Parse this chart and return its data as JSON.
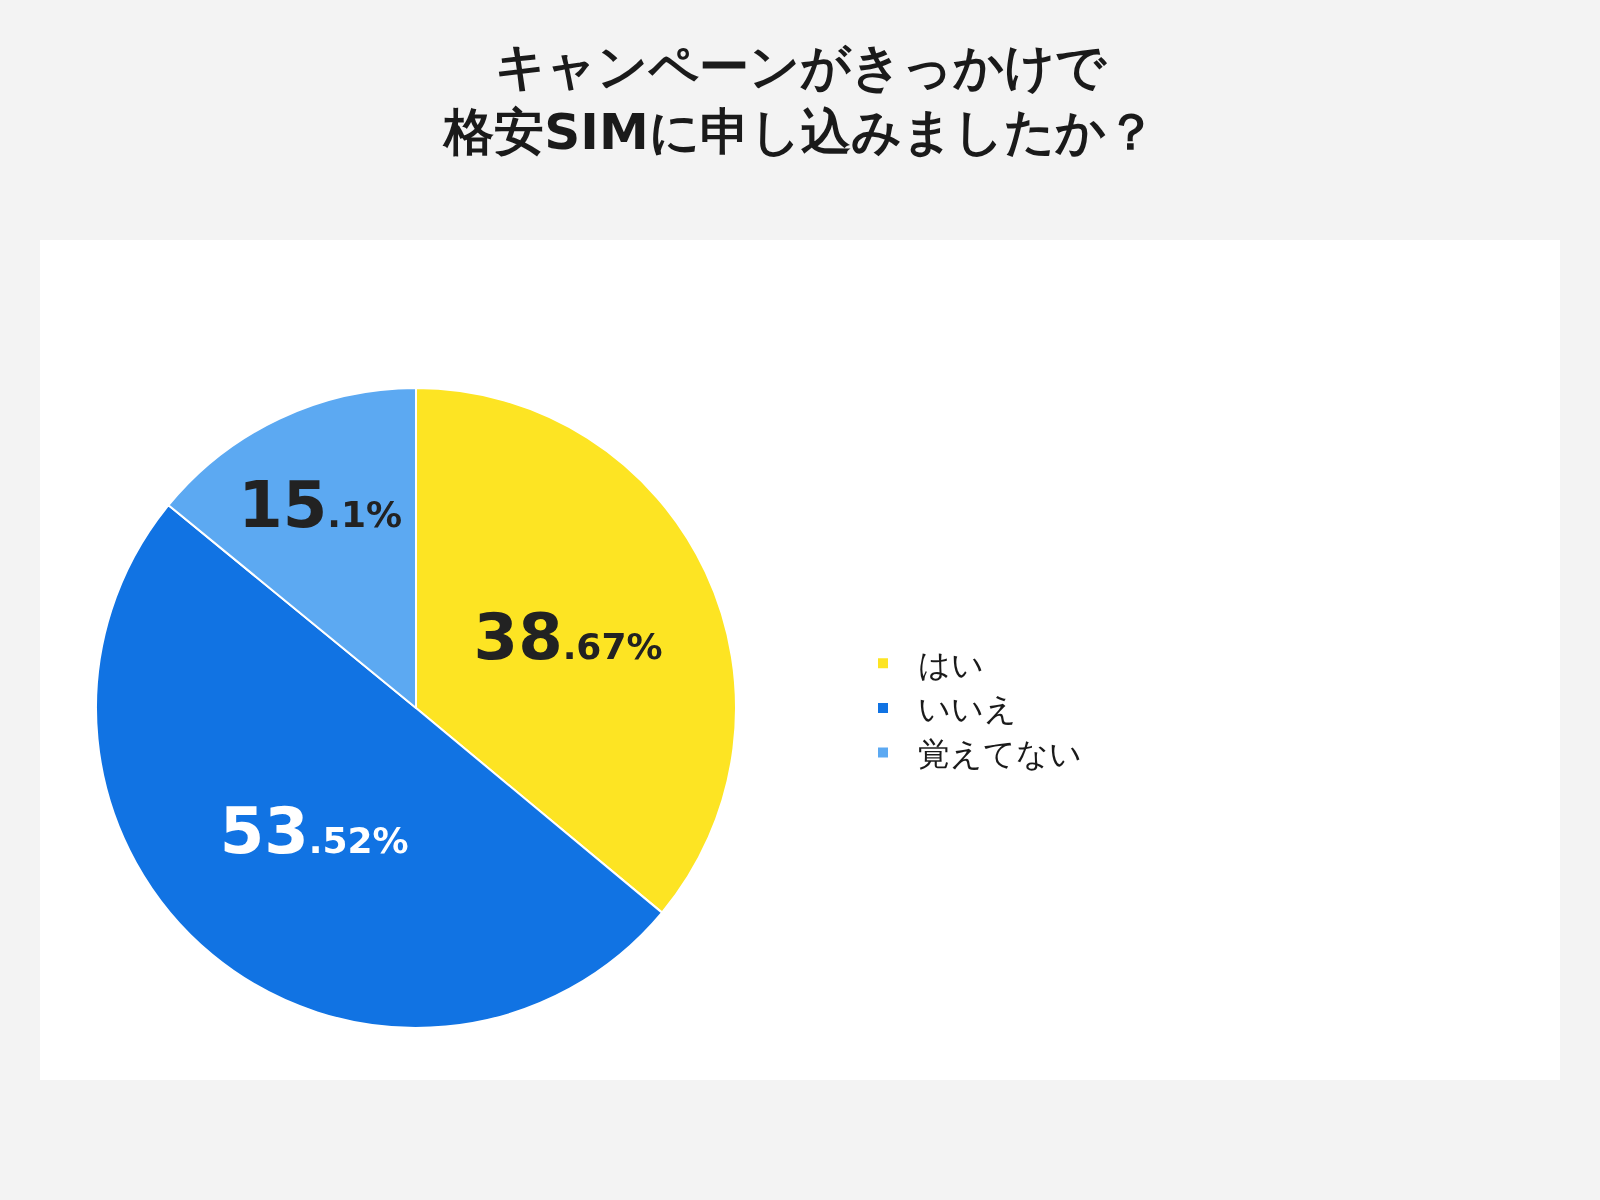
{
  "chart_data": {
    "type": "pie",
    "title": "キャンペーンがきっかけで格安SIMに申し込みましたか？",
    "categories": [
      "はい",
      "いいえ",
      "覚えてない"
    ],
    "values": [
      38.67,
      53.52,
      15.1
    ],
    "colors": [
      "#fde423",
      "#1173e3",
      "#5ca9f2"
    ],
    "value_labels": [
      "38.67%",
      "53.52%",
      "15.1%"
    ],
    "legend": "right"
  }
}
